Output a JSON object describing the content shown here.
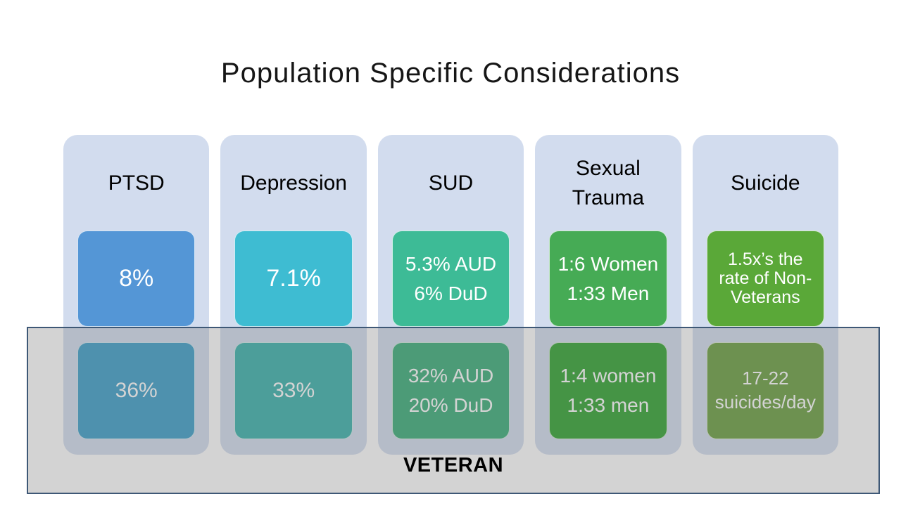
{
  "slide": {
    "title": "Population Specific Considerations",
    "band": {
      "label": "VETERAN",
      "fill": "rgba(128,128,128,0.35)",
      "border_color": "#3e5876"
    },
    "colors": {
      "column_bg": "#d2dcee",
      "title": "#161616"
    },
    "columns": [
      {
        "header": [
          "PTSD"
        ],
        "general": {
          "lines": [
            "8%"
          ],
          "color": "#5496d6"
        },
        "veteran": {
          "lines": [
            "36%"
          ],
          "color": "#349ac6"
        }
      },
      {
        "header": [
          "Depression"
        ],
        "general": {
          "lines": [
            "7.1%"
          ],
          "color": "#3ebcd2"
        },
        "veteran": {
          "lines": [
            "33%"
          ],
          "color": "#31aea8"
        }
      },
      {
        "header": [
          "SUD"
        ],
        "general": {
          "lines": [
            "5.3% AUD",
            "6% DuD"
          ],
          "color": "#3dbb96"
        },
        "veteran": {
          "lines": [
            "32% AUD",
            "20% DuD"
          ],
          "color": "#31aa72"
        }
      },
      {
        "header": [
          "Sexual",
          "Trauma"
        ],
        "general": {
          "lines": [
            "1:6 Women",
            "1:33 Men"
          ],
          "color": "#46ab55"
        },
        "veteran": {
          "lines": [
            "1:4 women",
            "1:33 men"
          ],
          "color": "#259f26"
        }
      },
      {
        "header": [
          "Suicide"
        ],
        "general": {
          "lines": [
            "1.5x’s the",
            "rate of Non-",
            "Veterans"
          ],
          "color": "#5aa838"
        },
        "veteran": {
          "lines": [
            "17-22",
            "suicides/day"
          ],
          "color": "#639a36"
        }
      }
    ]
  }
}
